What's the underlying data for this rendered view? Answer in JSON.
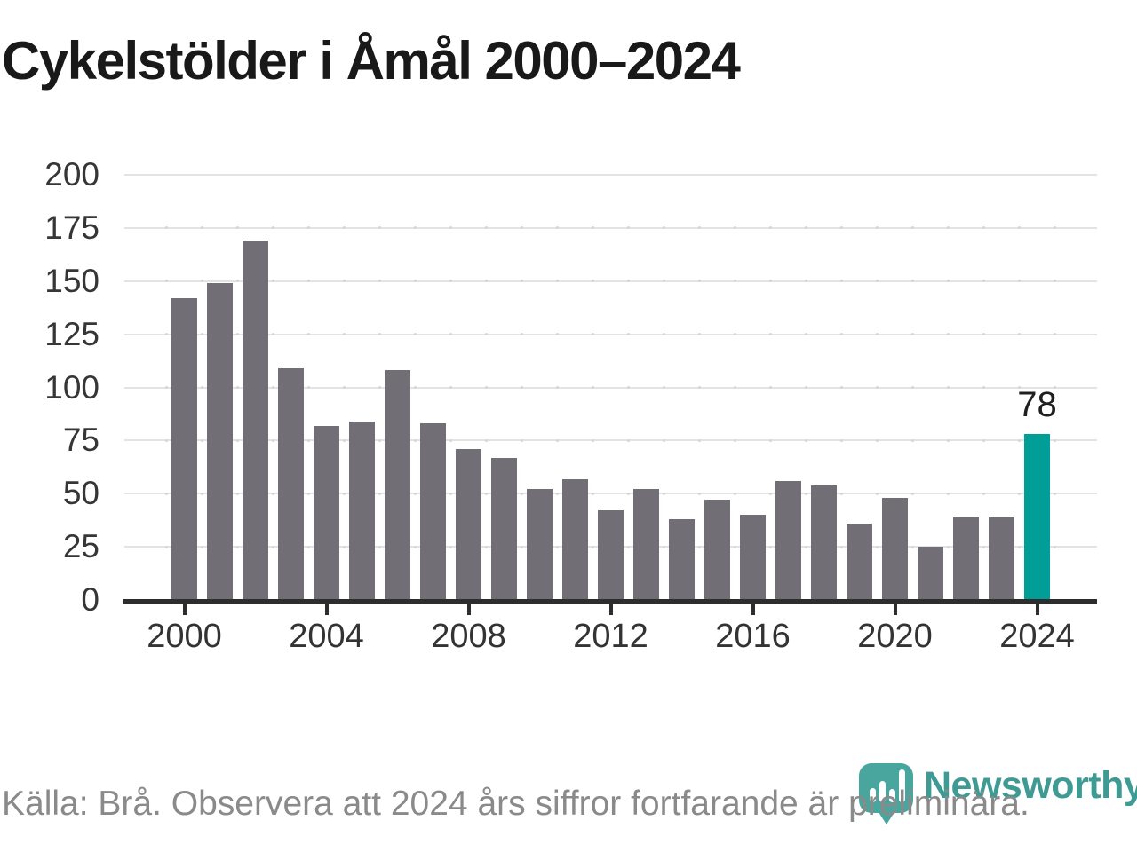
{
  "title": "Cykelstölder i Åmål 2000–2024",
  "chart_data": {
    "type": "bar",
    "categories": [
      2000,
      2001,
      2002,
      2003,
      2004,
      2005,
      2006,
      2007,
      2008,
      2009,
      2010,
      2011,
      2012,
      2013,
      2014,
      2015,
      2016,
      2017,
      2018,
      2019,
      2020,
      2021,
      2022,
      2023,
      2024
    ],
    "values": [
      142,
      149,
      169,
      109,
      82,
      84,
      108,
      83,
      71,
      67,
      52,
      57,
      42,
      52,
      38,
      47,
      40,
      56,
      54,
      36,
      48,
      25,
      39,
      39,
      78
    ],
    "title": "Cykelstölder i Åmål 2000–2024",
    "xlabel": "",
    "ylabel": "",
    "ylim": [
      0,
      200
    ],
    "yticks": [
      0,
      25,
      50,
      75,
      100,
      125,
      150,
      175,
      200
    ],
    "xticks": [
      2000,
      2004,
      2008,
      2012,
      2016,
      2020,
      2024
    ],
    "grid": "horizontal",
    "legend": "none",
    "bar_color": "#716E75",
    "highlight_color": "#009E97",
    "highlight_index": 24,
    "highlight_label": "78"
  },
  "footer": {
    "source_text": "Källa: Brå. Observera att 2024 års siffror fortfarande är preliminära."
  },
  "logo": {
    "name": "Newsworthy",
    "icon": "newsworthy-pin-barchart-icon",
    "icon_color": "#49A69F",
    "wordmark_color": "#3E9B94"
  }
}
